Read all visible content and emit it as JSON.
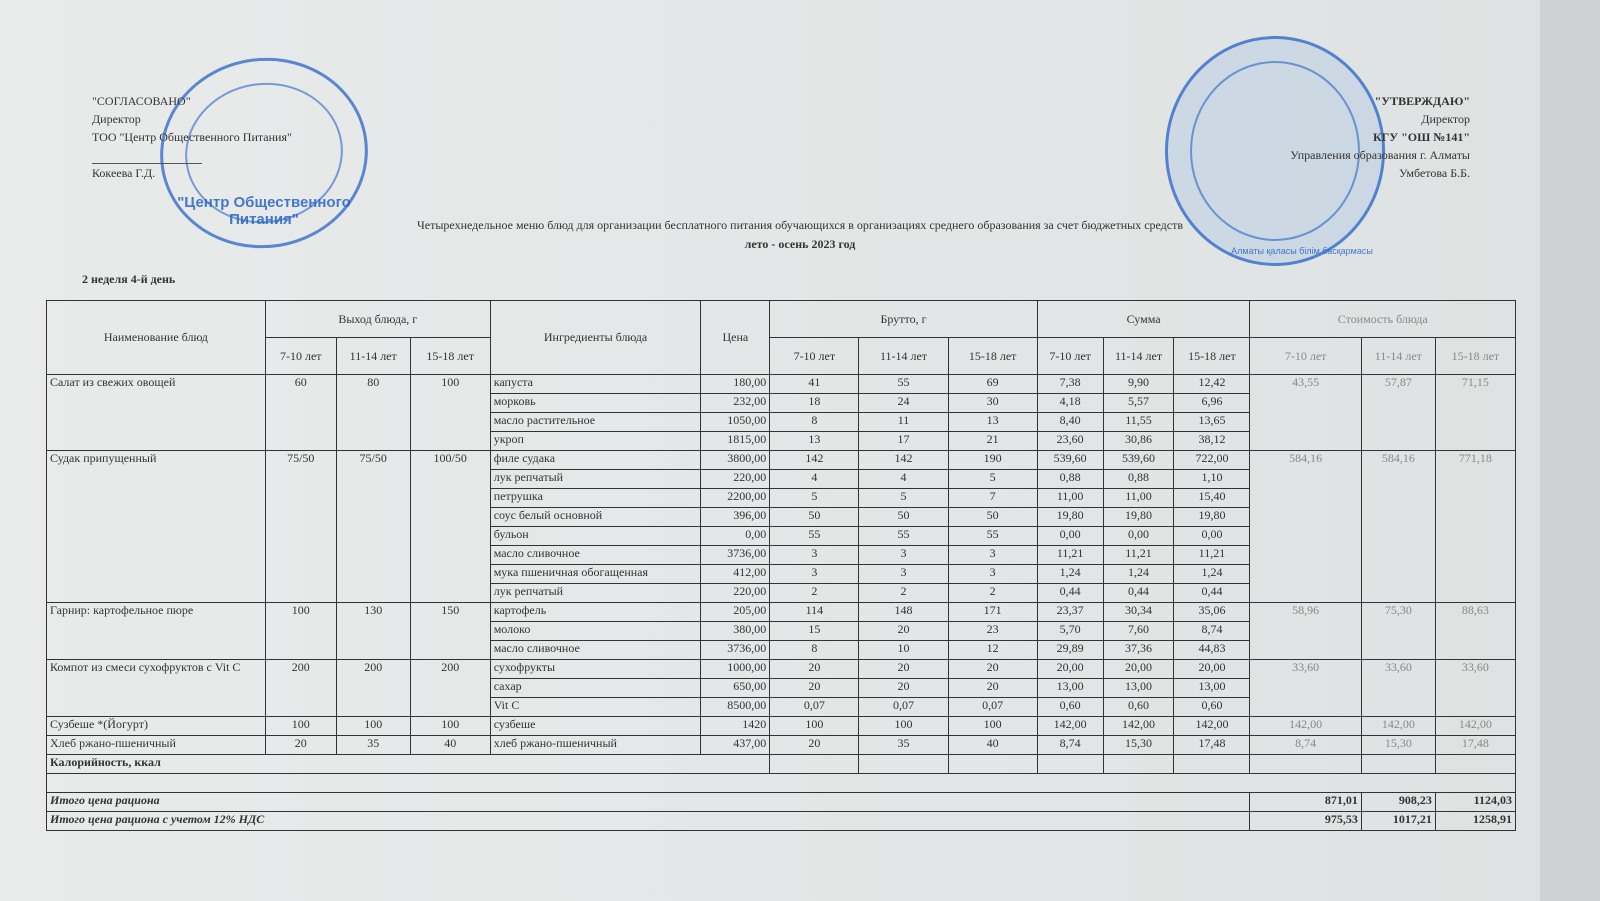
{
  "left_approval": {
    "label": "\"СОГЛАСОВАНО\"",
    "position": "Директор",
    "org": "ТОО \"Центр Общественного Питания\"",
    "name": "Кокеева Г.Д."
  },
  "right_approval": {
    "label": "\"УТВЕРЖДАЮ\"",
    "position": "Директор",
    "org": "КГУ \"ОШ №141\"",
    "dept": "Управления образования г. Алматы",
    "name": "Умбетова Б.Б."
  },
  "stamps": {
    "left": "\"Центр Общественного Питания\"",
    "right": "Алматы қаласы білім басқармасы"
  },
  "title": "Четырехнедельное меню блюд для организации бесплатного питания обучающихся в организациях среднего образования за счет бюджетных средств",
  "subtitle": "лето - осень 2023 год",
  "week_day": "2 неделя 4-й день",
  "headers": {
    "name": "Наименование блюд",
    "output": "Выход блюда, г",
    "ingredients": "Ингредиенты блюда",
    "price": "Цена",
    "brutto": "Брутто, г",
    "sum": "Сумма",
    "cost": "Стоимость блюда",
    "ages": [
      "7-10 лет",
      "11-14 лет",
      "15-18 лет"
    ]
  },
  "dishes": [
    {
      "name": "Салат из свежих овощей",
      "out": [
        "60",
        "80",
        "100"
      ],
      "cost": [
        "43,55",
        "57,87",
        "71,15"
      ],
      "ing": [
        [
          "капуста",
          "180,00",
          "41",
          "55",
          "69",
          "7,38",
          "9,90",
          "12,42"
        ],
        [
          "морковь",
          "232,00",
          "18",
          "24",
          "30",
          "4,18",
          "5,57",
          "6,96"
        ],
        [
          "масло растительное",
          "1050,00",
          "8",
          "11",
          "13",
          "8,40",
          "11,55",
          "13,65"
        ],
        [
          "укроп",
          "1815,00",
          "13",
          "17",
          "21",
          "23,60",
          "30,86",
          "38,12"
        ]
      ]
    },
    {
      "name": "Судак припущенный",
      "out": [
        "75/50",
        "75/50",
        "100/50"
      ],
      "cost": [
        "584,16",
        "584,16",
        "771,18"
      ],
      "ing": [
        [
          "филе судака",
          "3800,00",
          "142",
          "142",
          "190",
          "539,60",
          "539,60",
          "722,00"
        ],
        [
          "лук репчатый",
          "220,00",
          "4",
          "4",
          "5",
          "0,88",
          "0,88",
          "1,10"
        ],
        [
          "петрушка",
          "2200,00",
          "5",
          "5",
          "7",
          "11,00",
          "11,00",
          "15,40"
        ],
        [
          "соус белый основной",
          "396,00",
          "50",
          "50",
          "50",
          "19,80",
          "19,80",
          "19,80"
        ],
        [
          "бульон",
          "0,00",
          "55",
          "55",
          "55",
          "0,00",
          "0,00",
          "0,00"
        ],
        [
          "масло сливочное",
          "3736,00",
          "3",
          "3",
          "3",
          "11,21",
          "11,21",
          "11,21"
        ],
        [
          "мука пшеничная обогащенная",
          "412,00",
          "3",
          "3",
          "3",
          "1,24",
          "1,24",
          "1,24"
        ],
        [
          "лук репчатый",
          "220,00",
          "2",
          "2",
          "2",
          "0,44",
          "0,44",
          "0,44"
        ]
      ]
    },
    {
      "name": "Гарнир:  картофельное пюре",
      "out": [
        "100",
        "130",
        "150"
      ],
      "cost": [
        "58,96",
        "75,30",
        "88,63"
      ],
      "ing": [
        [
          "картофель",
          "205,00",
          "114",
          "148",
          "171",
          "23,37",
          "30,34",
          "35,06"
        ],
        [
          "молоко",
          "380,00",
          "15",
          "20",
          "23",
          "5,70",
          "7,60",
          "8,74"
        ],
        [
          "масло сливочное",
          "3736,00",
          "8",
          "10",
          "12",
          "29,89",
          "37,36",
          "44,83"
        ]
      ]
    },
    {
      "name": "Компот из смеси сухофруктов с Vit C",
      "out": [
        "200",
        "200",
        "200"
      ],
      "cost": [
        "33,60",
        "33,60",
        "33,60"
      ],
      "ing": [
        [
          "сухофрукты",
          "1000,00",
          "20",
          "20",
          "20",
          "20,00",
          "20,00",
          "20,00"
        ],
        [
          "сахар",
          "650,00",
          "20",
          "20",
          "20",
          "13,00",
          "13,00",
          "13,00"
        ],
        [
          "Vit C",
          "8500,00",
          "0,07",
          "0,07",
          "0,07",
          "0,60",
          "0,60",
          "0,60"
        ]
      ]
    },
    {
      "name": "Сузбеше *(Йогурт)",
      "out": [
        "100",
        "100",
        "100"
      ],
      "cost": [
        "142,00",
        "142,00",
        "142,00"
      ],
      "ing": [
        [
          "сузбеше",
          "1420",
          "100",
          "100",
          "100",
          "142,00",
          "142,00",
          "142,00"
        ]
      ]
    },
    {
      "name": "Хлеб ржано-пшеничный",
      "out": [
        "20",
        "35",
        "40"
      ],
      "cost": [
        "8,74",
        "15,30",
        "17,48"
      ],
      "ing": [
        [
          "хлеб ржано-пшеничный",
          "437,00",
          "20",
          "35",
          "40",
          "8,74",
          "15,30",
          "17,48"
        ]
      ]
    }
  ],
  "calories_label": "Калорийность, ккал",
  "total": {
    "label": "Итого цена рациона",
    "values": [
      "871,01",
      "908,23",
      "1124,03"
    ]
  },
  "total_vat": {
    "label": "Итого цена рациона с учетом 12% НДС",
    "values": [
      "975,53",
      "1017,21",
      "1258,91"
    ]
  }
}
